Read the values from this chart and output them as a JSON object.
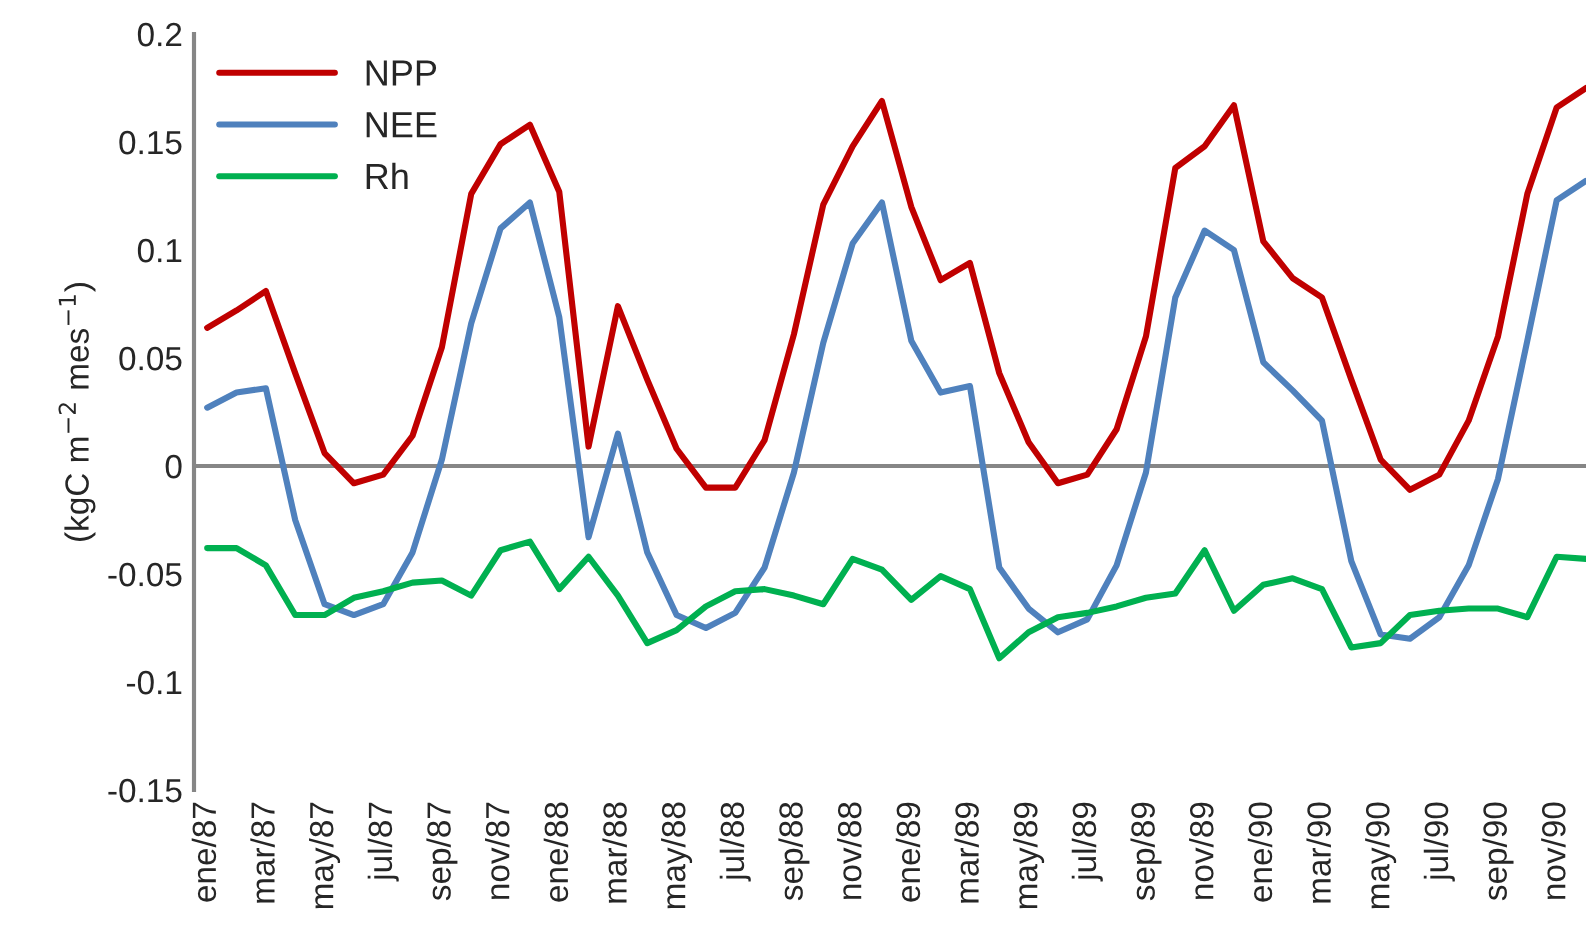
{
  "chart_data": {
    "type": "line",
    "ylabel": "(kgC m$^{−2}$ mes$^{−1}$)",
    "categories": [
      "ene/87",
      null,
      "mar/87",
      null,
      "may/87",
      null,
      "jul/87",
      null,
      "sep/87",
      null,
      "nov/87",
      null,
      "ene/88",
      null,
      "mar/88",
      null,
      "may/88",
      null,
      "jul/88",
      null,
      "sep/88",
      null,
      "nov/88",
      null,
      "ene/89",
      null,
      "mar/89",
      null,
      "may/89",
      null,
      "jul/89",
      null,
      "sep/89",
      null,
      "nov/89",
      null,
      "ene/90",
      null,
      "mar/90",
      null,
      "may/90",
      null,
      "jul/90",
      null,
      "sep/90",
      null,
      "nov/90",
      null
    ],
    "series": [
      {
        "name": "NPP",
        "color": "#c00000",
        "values": [
          0.064,
          0.072,
          0.081,
          0.043,
          0.006,
          -0.008,
          -0.004,
          0.014,
          0.055,
          0.126,
          0.149,
          0.158,
          0.127,
          0.009,
          0.074,
          0.04,
          0.008,
          -0.01,
          -0.01,
          0.012,
          0.061,
          0.121,
          0.148,
          0.169,
          0.12,
          0.086,
          0.094,
          0.043,
          0.011,
          -0.008,
          -0.004,
          0.017,
          0.06,
          0.138,
          0.148,
          0.167,
          0.104,
          0.087,
          0.078,
          0.04,
          0.003,
          -0.011,
          -0.004,
          0.021,
          0.06,
          0.126,
          0.166,
          0.175
        ]
      },
      {
        "name": "NEE",
        "color": "#4f81bd",
        "values": [
          0.027,
          0.034,
          0.036,
          -0.025,
          -0.064,
          -0.069,
          -0.064,
          -0.04,
          0.003,
          0.066,
          0.11,
          0.122,
          0.069,
          -0.033,
          0.015,
          -0.04,
          -0.069,
          -0.075,
          -0.068,
          -0.047,
          -0.003,
          0.057,
          0.103,
          0.122,
          0.058,
          0.034,
          0.037,
          -0.047,
          -0.066,
          -0.077,
          -0.071,
          -0.046,
          -0.003,
          0.078,
          0.109,
          0.1,
          0.048,
          0.035,
          0.021,
          -0.044,
          -0.078,
          -0.08,
          -0.07,
          -0.046,
          -0.006,
          0.058,
          0.123,
          0.132
        ]
      },
      {
        "name": "Rh",
        "color": "#00b050",
        "values": [
          -0.038,
          -0.038,
          -0.046,
          -0.069,
          -0.069,
          -0.061,
          -0.058,
          -0.054,
          -0.053,
          -0.06,
          -0.039,
          -0.035,
          -0.057,
          -0.042,
          -0.06,
          -0.082,
          -0.076,
          -0.065,
          -0.058,
          -0.057,
          -0.06,
          -0.064,
          -0.043,
          -0.048,
          -0.062,
          -0.051,
          -0.057,
          -0.089,
          -0.077,
          -0.07,
          -0.068,
          -0.065,
          -0.061,
          -0.059,
          -0.039,
          -0.067,
          -0.055,
          -0.052,
          -0.057,
          -0.084,
          -0.082,
          -0.069,
          -0.067,
          -0.066,
          -0.066,
          -0.07,
          -0.042,
          -0.043
        ]
      }
    ],
    "ylim": [
      -0.15,
      0.2
    ],
    "yticks": [
      -0.15,
      -0.1,
      -0.05,
      0,
      0.05,
      0.1,
      0.15,
      0.2
    ],
    "ref_lines": [
      {
        "axis": "y",
        "value": 0,
        "color": "#868686"
      }
    ],
    "grid": false,
    "legend": "top left",
    "marker": "none",
    "line_style": "solid"
  }
}
